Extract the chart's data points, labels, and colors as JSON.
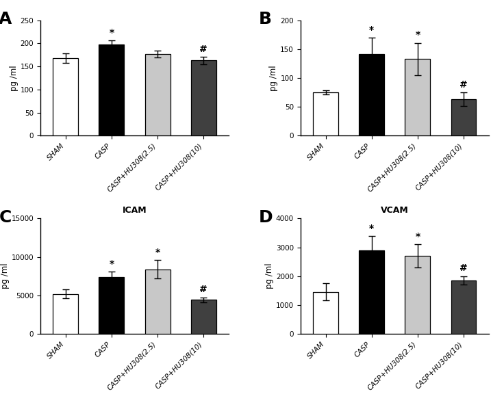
{
  "panels": [
    {
      "label": "A",
      "title": "",
      "ylabel": "pg /ml",
      "ylim": [
        0,
        250
      ],
      "yticks": [
        0,
        50,
        100,
        150,
        200,
        250
      ],
      "values": [
        168,
        198,
        177,
        163
      ],
      "errors": [
        10,
        8,
        8,
        8
      ],
      "sig": [
        "",
        "*",
        "",
        "#"
      ],
      "colors": [
        "white",
        "black",
        "#c8c8c8",
        "#404040"
      ]
    },
    {
      "label": "B",
      "title": "",
      "ylabel": "pg /ml",
      "ylim": [
        0,
        200
      ],
      "yticks": [
        0,
        50,
        100,
        150,
        200
      ],
      "values": [
        75,
        142,
        133,
        63
      ],
      "errors": [
        3,
        28,
        28,
        12
      ],
      "sig": [
        "",
        "*",
        "*",
        "#"
      ],
      "colors": [
        "white",
        "black",
        "#c8c8c8",
        "#404040"
      ]
    },
    {
      "label": "C",
      "title": "ICAM",
      "ylabel": "pg /ml",
      "ylim": [
        0,
        15000
      ],
      "yticks": [
        0,
        5000,
        10000,
        15000
      ],
      "values": [
        5200,
        7400,
        8400,
        4400
      ],
      "errors": [
        600,
        700,
        1200,
        350
      ],
      "sig": [
        "",
        "*",
        "*",
        "#"
      ],
      "colors": [
        "white",
        "black",
        "#c8c8c8",
        "#404040"
      ]
    },
    {
      "label": "D",
      "title": "VCAM",
      "ylabel": "pg /ml",
      "ylim": [
        0,
        4000
      ],
      "yticks": [
        0,
        1000,
        2000,
        3000,
        4000
      ],
      "values": [
        1450,
        2900,
        2700,
        1850
      ],
      "errors": [
        300,
        500,
        400,
        150
      ],
      "sig": [
        "",
        "*",
        "*",
        "#"
      ],
      "colors": [
        "white",
        "black",
        "#c8c8c8",
        "#404040"
      ]
    }
  ],
  "categories": [
    "SHAM",
    "CASP",
    "CASP+HU308(2.5)",
    "CASP+HU308(10)"
  ],
  "bar_width": 0.55,
  "edgecolor": "black",
  "background_color": "white",
  "label_fontsize": 18,
  "tick_fontsize": 7.5,
  "sig_fontsize": 10,
  "ylabel_fontsize": 8.5,
  "title_fontsize": 9
}
